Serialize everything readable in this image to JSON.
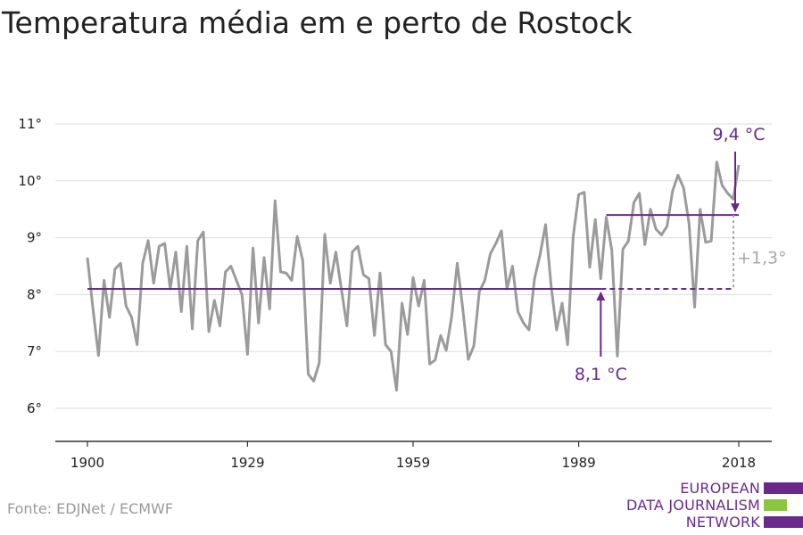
{
  "title": "Temperatura média em e perto de Rostock",
  "source": "Fonte: EDJNet / ECMWF",
  "logo": {
    "lines": [
      "EUROPEAN",
      "DATA JOURNALISM",
      "NETWORK"
    ],
    "bar_colors": [
      "#6a2a8a",
      "#8cc63f",
      "#6a2a8a"
    ]
  },
  "colors": {
    "series": "#9b9b9b",
    "accent": "#6a2a8a",
    "delta": "#a8a8a8",
    "grid": "#dddddd",
    "axis": "#333333",
    "text": "#222222"
  },
  "chart_data": {
    "type": "line",
    "title": "Temperatura média em e perto de Rostock",
    "xlabel": "",
    "ylabel": "",
    "xlim": [
      1900,
      2018
    ],
    "ylim": [
      5.5,
      11.3
    ],
    "x_ticks": [
      {
        "value": 1900,
        "label": "1900"
      },
      {
        "value": 1929,
        "label": "1929"
      },
      {
        "value": 1959,
        "label": "1959"
      },
      {
        "value": 1989,
        "label": "1989"
      },
      {
        "value": 2018,
        "label": "2018"
      }
    ],
    "y_ticks": [
      {
        "value": 6,
        "label": "6°"
      },
      {
        "value": 7,
        "label": "7°"
      },
      {
        "value": 8,
        "label": "8°"
      },
      {
        "value": 9,
        "label": "9°"
      },
      {
        "value": 10,
        "label": "10°"
      },
      {
        "value": 11,
        "label": "11°"
      }
    ],
    "grid": true,
    "series": [
      {
        "x_start": 1900,
        "values": [
          8.65,
          7.75,
          6.93,
          8.25,
          7.6,
          8.45,
          8.55,
          7.8,
          7.6,
          7.12,
          8.55,
          8.95,
          8.2,
          8.85,
          8.9,
          8.1,
          8.75,
          7.7,
          8.85,
          7.4,
          8.95,
          9.1,
          7.35,
          7.9,
          7.45,
          8.4,
          8.5,
          8.25,
          8.0,
          6.95,
          8.82,
          7.5,
          8.65,
          7.75,
          9.65,
          8.4,
          8.38,
          8.25,
          9.02,
          8.6,
          6.6,
          6.48,
          6.8,
          9.06,
          8.2,
          8.75,
          8.1,
          7.45,
          8.75,
          8.85,
          8.35,
          8.28,
          7.28,
          8.38,
          7.12,
          7.0,
          6.32,
          7.85,
          7.3,
          8.3,
          7.8,
          8.25,
          6.78,
          6.85,
          7.28,
          7.02,
          7.62,
          8.55,
          7.75,
          6.86,
          7.1,
          8.05,
          8.25,
          8.72,
          8.9,
          9.12,
          8.1,
          8.5,
          7.7,
          7.5,
          7.38,
          8.28,
          8.7,
          9.23,
          8.15,
          7.38,
          7.85,
          7.12,
          9.02,
          9.76,
          9.8,
          8.48,
          9.32,
          8.28,
          9.36,
          8.78,
          6.92,
          8.8,
          8.94,
          9.62,
          9.78,
          8.88,
          9.5,
          9.15,
          9.05,
          9.2,
          9.82,
          10.1,
          9.88,
          9.25,
          7.78,
          9.5,
          8.92,
          8.94,
          10.33,
          9.92,
          9.78,
          9.68,
          10.28
        ]
      }
    ],
    "reference_lines": [
      {
        "label": "8,1 °C",
        "value": 8.1,
        "x_start": 1900,
        "x_solid_end": 1993,
        "x_dashed_end": 2018
      },
      {
        "label": "9,4 °C",
        "value": 9.4,
        "x_start": 1994,
        "x_end": 2018
      }
    ],
    "annotations": [
      {
        "text": "9,4 °C",
        "x": 2018,
        "y": 9.4,
        "arrow": "down"
      },
      {
        "text": "8,1 °C",
        "x": 1993,
        "y": 8.1,
        "arrow": "up"
      },
      {
        "text": "+1,3°",
        "x": 2018,
        "y_from": 8.1,
        "y_to": 9.4
      }
    ]
  }
}
